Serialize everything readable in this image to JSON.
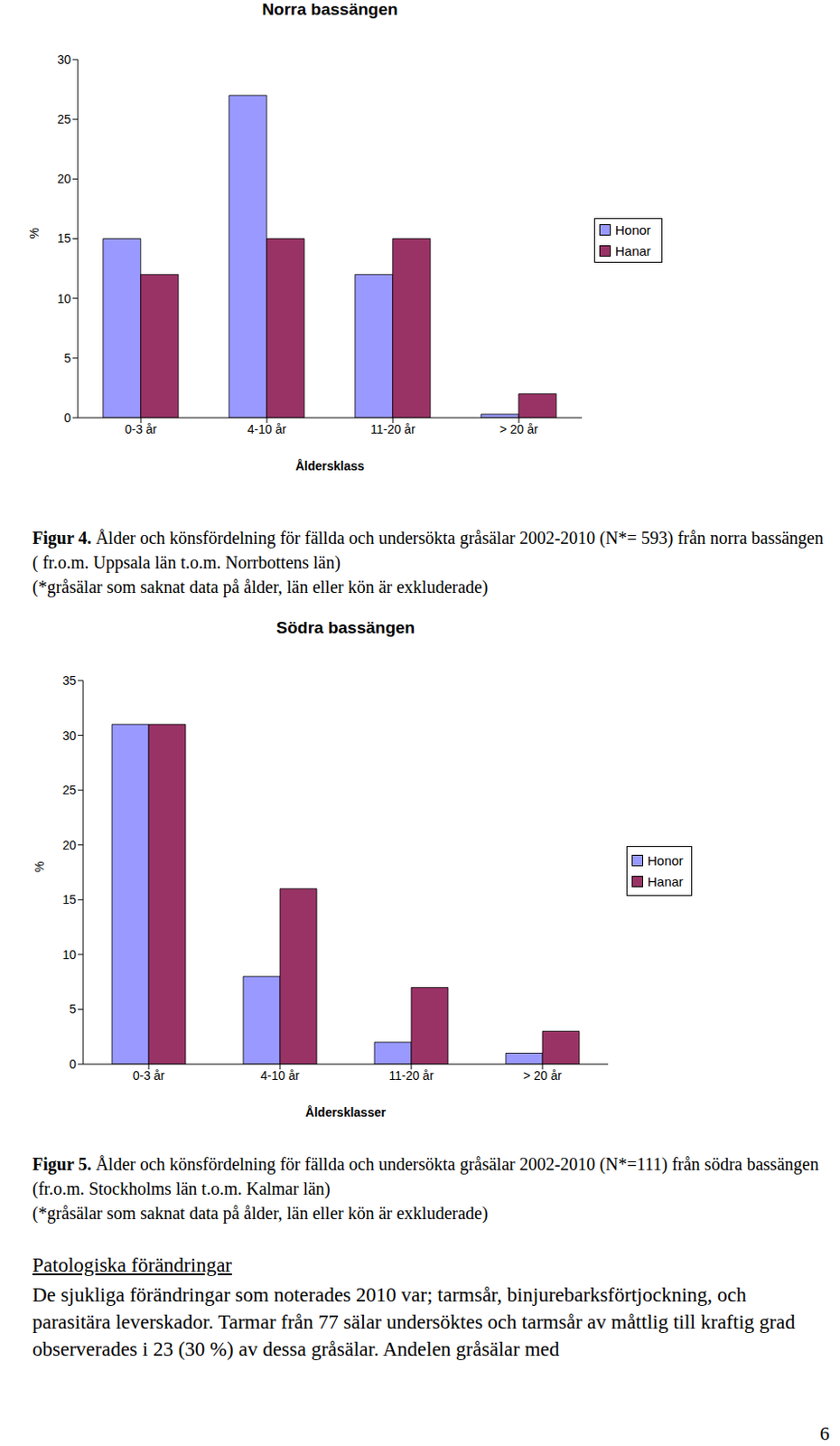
{
  "chart_data": [
    {
      "type": "bar",
      "title": "Norra bassängen",
      "x_label": "Åldersklass",
      "y_label": "%",
      "categories": [
        "0-3 år",
        "4-10 år",
        "11-20 år",
        "> 20 år"
      ],
      "series": [
        {
          "name": "Honor",
          "color": "#9999ff",
          "values": [
            15,
            27,
            12,
            0.3
          ]
        },
        {
          "name": "Hanar",
          "color": "#993366",
          "values": [
            12,
            15,
            15,
            2
          ]
        }
      ],
      "ylim": [
        0,
        30
      ],
      "yticks": [
        0,
        5,
        10,
        15,
        20,
        25,
        30
      ],
      "grid": false,
      "legend": "right",
      "caption": {
        "label": "Figur 4.",
        "text": "Ålder och könsfördelning för fällda och undersökta gråsälar 2002-2010 (N*= 593) från norra bassängen ( fr.o.m. Uppsala län t.o.m. Norrbottens län)",
        "note": "(*gråsälar som saknat data på ålder, län eller kön är exkluderade)"
      }
    },
    {
      "type": "bar",
      "title": "Södra bassängen",
      "x_label": "Åldersklasser",
      "y_label": "%",
      "categories": [
        "0-3 år",
        "4-10 år",
        "11-20 år",
        "> 20 år"
      ],
      "series": [
        {
          "name": "Honor",
          "color": "#9999ff",
          "values": [
            31,
            8,
            2,
            1
          ]
        },
        {
          "name": "Hanar",
          "color": "#993366",
          "values": [
            31,
            16,
            7,
            3
          ]
        }
      ],
      "ylim": [
        0,
        35
      ],
      "yticks": [
        0,
        5,
        10,
        15,
        20,
        25,
        30,
        35
      ],
      "grid": false,
      "legend": "right",
      "caption": {
        "label": "Figur 5.",
        "text": "Ålder och könsfördelning för fällda och undersökta gråsälar 2002-2010 (N*=111) från södra bassängen (fr.o.m. Stockholms län t.o.m. Kalmar län)",
        "note": "(*gråsälar som saknat data på ålder, län eller kön är exkluderade)"
      }
    }
  ],
  "document": {
    "heading": "Patologiska förändringar",
    "paragraph": "De sjukliga förändringar som noterades 2010 var; tarmsår, binjurebarksförtjockning, och parasitära leverskador. Tarmar från 77 sälar undersöktes och tarmsår av måttlig till kraftig grad observerades i 23 (30 %) av dessa gråsälar. Andelen gråsälar med",
    "page_number": 6
  }
}
